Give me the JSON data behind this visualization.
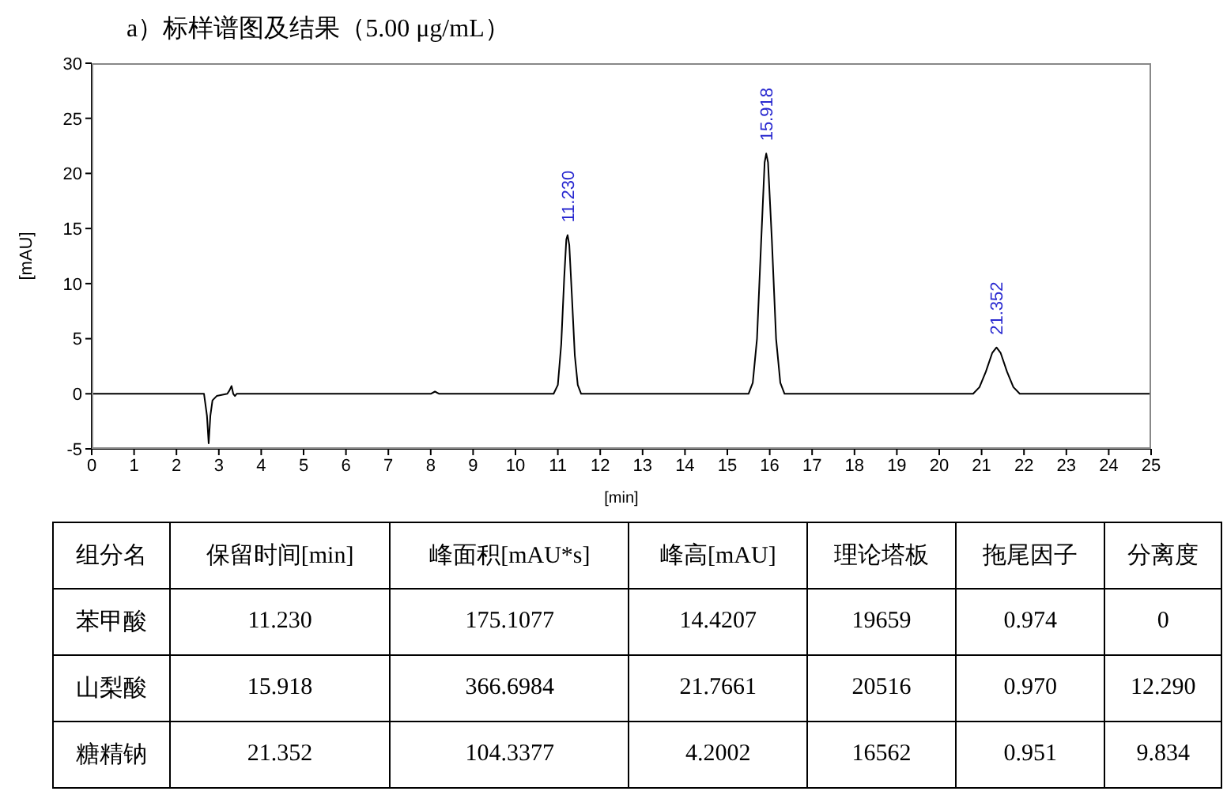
{
  "chart_data": [
    {
      "type": "line",
      "title": "a）标样谱图及结果（5.00 μg/mL）",
      "xlabel": "[min]",
      "ylabel": "[mAU]",
      "x": [
        0,
        2.65,
        2.72,
        2.76,
        2.8,
        2.85,
        2.95,
        3.2,
        3.25,
        3.3,
        3.34,
        3.38,
        3.42,
        8.0,
        8.1,
        8.2,
        10.9,
        11.0,
        11.08,
        11.15,
        11.2,
        11.23,
        11.27,
        11.33,
        11.4,
        11.47,
        11.55,
        15.5,
        15.6,
        15.7,
        15.8,
        15.88,
        15.918,
        15.96,
        16.05,
        16.15,
        16.25,
        16.35,
        20.8,
        20.95,
        21.1,
        21.25,
        21.352,
        21.45,
        21.6,
        21.75,
        21.9,
        25
      ],
      "series": [
        {
          "color": "#000000",
          "values": [
            0,
            0,
            -2,
            -4.5,
            -2,
            -0.6,
            -0.2,
            0,
            0.3,
            0.7,
            0,
            -0.2,
            0,
            0,
            0.2,
            0,
            0,
            0.8,
            4.5,
            10.5,
            14,
            14.4,
            13.5,
            9,
            3.5,
            0.8,
            0,
            0,
            1,
            5,
            14,
            21,
            21.8,
            21,
            14,
            5,
            1,
            0,
            0,
            0.6,
            2,
            3.7,
            4.2,
            3.7,
            2,
            0.6,
            0,
            0
          ]
        }
      ],
      "xlim": [
        0,
        25
      ],
      "xticks": [
        0,
        1,
        2,
        3,
        4,
        5,
        6,
        7,
        8,
        9,
        10,
        11,
        12,
        13,
        14,
        15,
        16,
        17,
        18,
        19,
        20,
        21,
        22,
        23,
        24,
        25
      ],
      "ylim": [
        -5,
        30
      ],
      "yticks": [
        -5,
        0,
        5,
        10,
        15,
        20,
        25,
        30
      ],
      "marker": "none",
      "line_style": "solid",
      "annotations": [
        {
          "text": "11.230",
          "x": 11.23,
          "y": 14.4
        },
        {
          "text": "15.918",
          "x": 15.918,
          "y": 21.8
        },
        {
          "text": "21.352",
          "x": 21.352,
          "y": 4.2
        }
      ]
    },
    {
      "type": "other",
      "ylabel": "组分名",
      "categories": [
        "保留时间[min]",
        "峰面积[mAU*s]",
        "峰高[mAU]",
        "理论塔板",
        "拖尾因子",
        "分离度"
      ],
      "y_categories": [
        "苯甲酸",
        "山梨酸",
        "糖精钠"
      ],
      "cell_labels": [
        [
          "11.230",
          "175.1077",
          "14.4207",
          "19659",
          "0.974",
          "0"
        ],
        [
          "15.918",
          "366.6984",
          "21.7661",
          "20516",
          "0.970",
          "12.290"
        ],
        [
          "21.352",
          "104.3377",
          "4.2002",
          "16562",
          "0.951",
          "9.834"
        ]
      ]
    }
  ]
}
